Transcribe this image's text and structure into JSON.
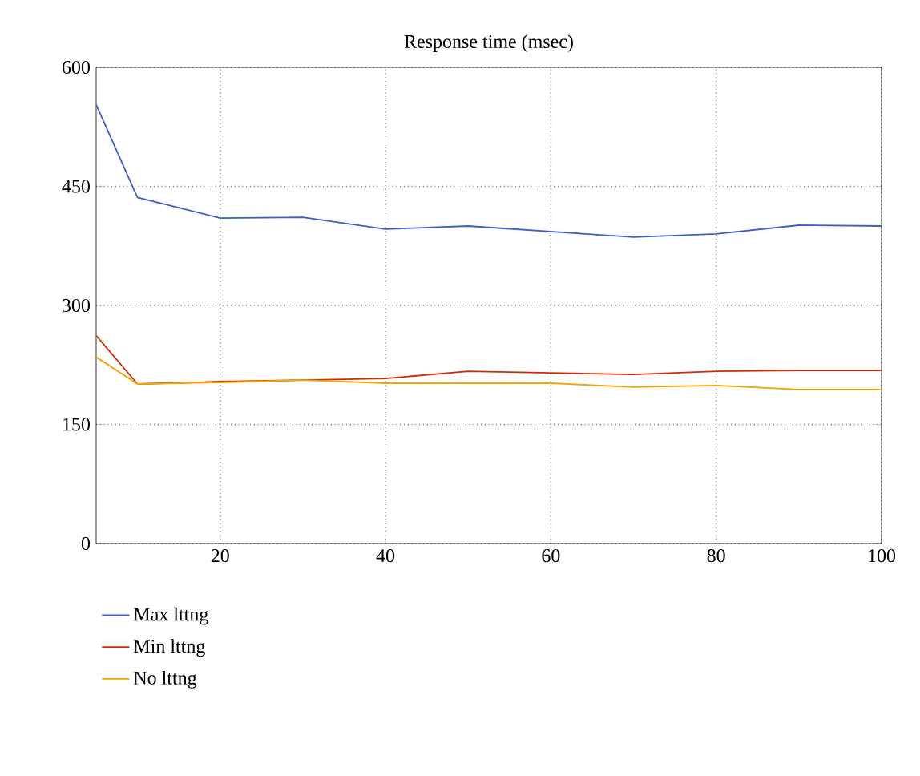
{
  "chart_data": {
    "type": "line",
    "title": "Response time (msec)",
    "x": [
      5,
      10,
      20,
      30,
      40,
      50,
      60,
      70,
      80,
      90,
      100
    ],
    "series": [
      {
        "name": "Max lttng",
        "color": "#3a5fcd",
        "values": [
          553,
          436,
          410,
          411,
          396,
          400,
          393,
          386,
          390,
          401,
          400
        ]
      },
      {
        "name": "Min lttng",
        "color": "#d42a00",
        "values": [
          262,
          201,
          204,
          206,
          208,
          217,
          215,
          213,
          217,
          218,
          218
        ]
      },
      {
        "name": "No lttng",
        "color": "#f5a300",
        "values": [
          235,
          201,
          203,
          206,
          202,
          202,
          202,
          197,
          199,
          194,
          194
        ]
      }
    ],
    "xlim": [
      5,
      100
    ],
    "xticks": [
      20,
      40,
      60,
      80,
      100
    ],
    "ylim": [
      0,
      600
    ],
    "yticks": [
      0,
      150,
      300,
      450,
      600
    ],
    "grid": true,
    "legend": "bottom",
    "marker": "none",
    "line_style": "solid"
  }
}
